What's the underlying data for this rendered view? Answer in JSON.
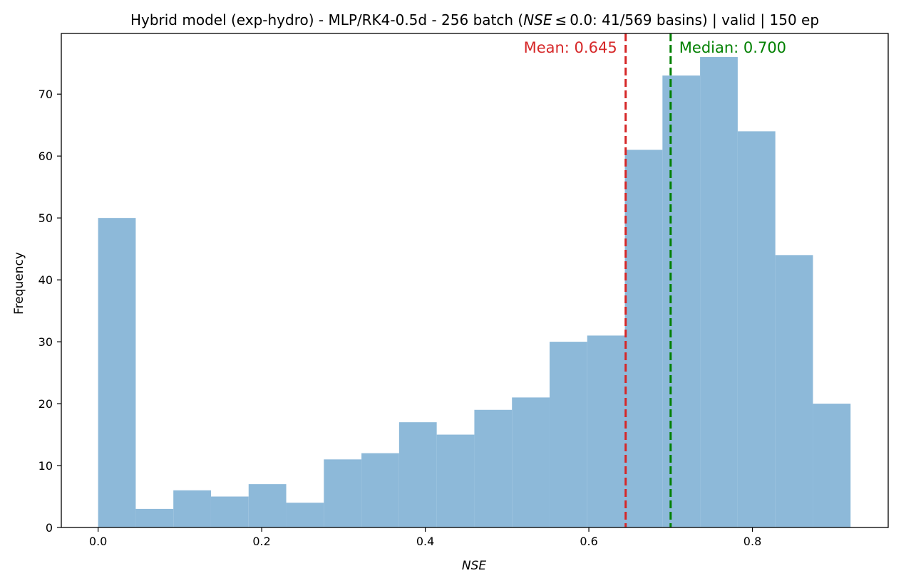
{
  "chart_data": {
    "type": "bar",
    "title_parts": {
      "pre": "Hybrid model (exp-hydro) - MLP/RK4-0.5d - 256 batch (",
      "italic": "NSE",
      "post": " ≤ 0.0: 41/569 basins) | valid | 150 ep"
    },
    "xlabel": "NSE",
    "ylabel": "Frequency",
    "xlim": [
      -0.045,
      0.966
    ],
    "ylim": [
      0,
      79.8
    ],
    "bin_edges": [
      0.0,
      0.046,
      0.092,
      0.138,
      0.184,
      0.23,
      0.276,
      0.322,
      0.368,
      0.414,
      0.46,
      0.506,
      0.552,
      0.598,
      0.644,
      0.69,
      0.736,
      0.782,
      0.828,
      0.874,
      0.92
    ],
    "values": [
      50,
      3,
      6,
      5,
      7,
      4,
      11,
      12,
      17,
      15,
      19,
      21,
      30,
      31,
      61,
      73,
      76,
      64,
      44,
      20
    ],
    "bar_color": "#8db9d9",
    "xticks": [
      0.0,
      0.2,
      0.4,
      0.6,
      0.8
    ],
    "xtick_labels": [
      "0.0",
      "0.2",
      "0.4",
      "0.6",
      "0.8"
    ],
    "yticks": [
      0,
      10,
      20,
      30,
      40,
      50,
      60,
      70
    ],
    "ytick_labels": [
      "0",
      "10",
      "20",
      "30",
      "40",
      "50",
      "60",
      "70"
    ],
    "mean": {
      "value": 0.645,
      "label": "Mean: 0.645",
      "color": "#d62728"
    },
    "median": {
      "value": 0.7,
      "label": "Median: 0.700",
      "color": "#008000"
    },
    "grid": false
  }
}
